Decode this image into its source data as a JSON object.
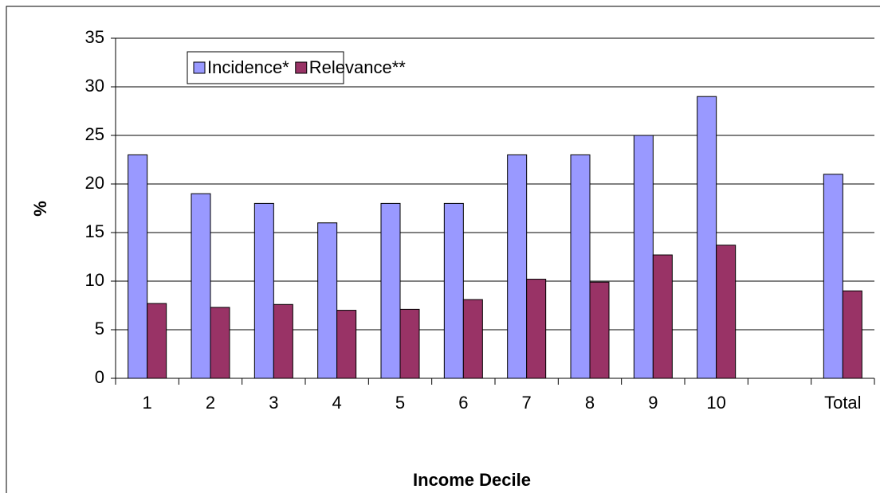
{
  "chart_data": {
    "type": "bar",
    "x_label": "Income Decile",
    "y_label": "%",
    "categories": [
      "1",
      "2",
      "3",
      "4",
      "5",
      "6",
      "7",
      "8",
      "9",
      "10",
      null,
      "Total"
    ],
    "series": [
      {
        "name": "Incidence*",
        "color": "#9999ff",
        "values": [
          23,
          19,
          18,
          16,
          18,
          18,
          23,
          23,
          25,
          29,
          null,
          21
        ]
      },
      {
        "name": "Relevance**",
        "color": "#993366",
        "values": [
          7.7,
          7.3,
          7.6,
          7.0,
          7.1,
          8.1,
          10.2,
          9.9,
          12.7,
          13.7,
          null,
          9.0
        ]
      }
    ],
    "ylim": [
      0,
      35
    ],
    "yticks": [
      0,
      5,
      10,
      15,
      20,
      25,
      30,
      35
    ],
    "grid": true,
    "legend": "top-left"
  }
}
